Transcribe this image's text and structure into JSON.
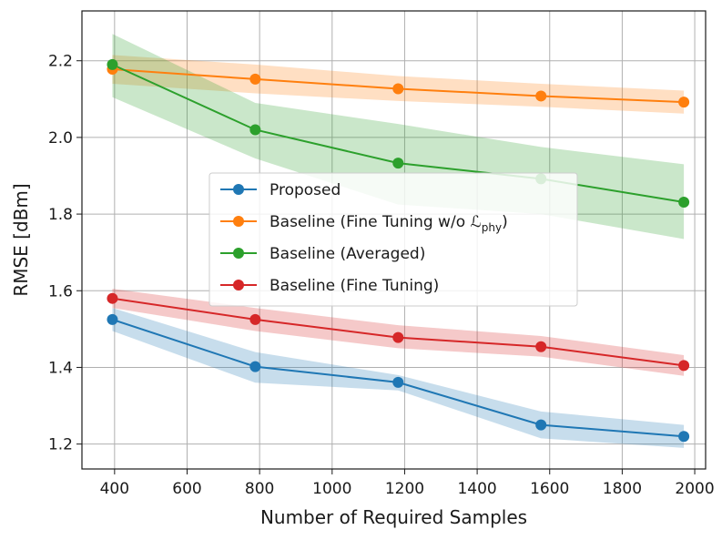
{
  "chart_data": {
    "type": "line",
    "title": "",
    "xlabel": "Number of Required Samples",
    "ylabel": "RMSE [dBm]",
    "xlim": [
      310,
      2030
    ],
    "ylim": [
      1.135,
      2.33
    ],
    "xticks": [
      400,
      600,
      800,
      1000,
      1200,
      1400,
      1600,
      1800,
      2000
    ],
    "yticks": [
      1.2,
      1.4,
      1.6,
      1.8,
      2.0,
      2.2
    ],
    "ytick_labels": [
      "1.2",
      "1.4",
      "1.6",
      "1.8",
      "2.0",
      "2.2"
    ],
    "grid": true,
    "legend_position": "center",
    "x": [
      394,
      788,
      1182,
      1576,
      1970
    ],
    "series": [
      {
        "name": "Proposed",
        "color": "#1f77b4",
        "values": [
          1.525,
          1.402,
          1.361,
          1.25,
          1.22
        ],
        "band_low": [
          1.495,
          1.36,
          1.34,
          1.215,
          1.19
        ],
        "band_high": [
          1.555,
          1.44,
          1.38,
          1.285,
          1.25
        ]
      },
      {
        "name": "Baseline (Fine Tuning w/o ",
        "legend_symbol": "ℒ",
        "legend_subscript": "phy",
        "legend_suffix": ")",
        "color": "#ff7f0e",
        "values": [
          2.178,
          2.152,
          2.127,
          2.108,
          2.092
        ],
        "band_low": [
          2.14,
          2.115,
          2.095,
          2.08,
          2.062
        ],
        "band_high": [
          2.215,
          2.19,
          2.16,
          2.14,
          2.122
        ]
      },
      {
        "name": "Baseline (Averaged)",
        "color": "#2ca02c",
        "values": [
          2.19,
          2.02,
          1.933,
          1.892,
          1.831
        ],
        "band_low": [
          2.105,
          1.945,
          1.825,
          1.8,
          1.735
        ],
        "band_high": [
          2.27,
          2.09,
          2.035,
          1.975,
          1.93
        ]
      },
      {
        "name": "Baseline (Fine Tuning)",
        "color": "#d62728",
        "values": [
          1.58,
          1.525,
          1.478,
          1.454,
          1.405
        ],
        "band_low": [
          1.555,
          1.495,
          1.45,
          1.428,
          1.378
        ],
        "band_high": [
          1.605,
          1.555,
          1.51,
          1.482,
          1.432
        ]
      }
    ]
  }
}
